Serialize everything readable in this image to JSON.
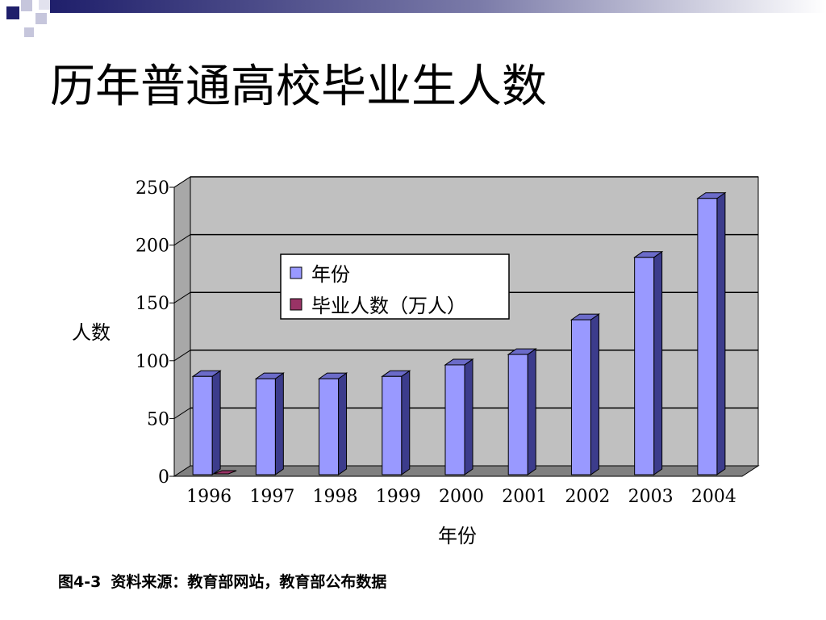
{
  "slide": {
    "title": "历年普通高校毕业生人数",
    "caption_label": "图4-3",
    "caption_text": "资料来源：教育部网站，教育部公布数据"
  },
  "colors": {
    "deco_dark": "#1f1f6b",
    "deco_mid": "#5a5a9a",
    "deco_light": "#c6c6dc",
    "plot_back": "#c0c0c0",
    "plot_floor": "#808080",
    "bar_front": "#9999ff",
    "bar_side": "#3c3c8c",
    "bar_top": "#6b6bc9",
    "series2": "#993366"
  },
  "chart_data": {
    "type": "bar",
    "title": "",
    "xlabel": "年份",
    "ylabel": "人数",
    "categories": [
      "1996",
      "1997",
      "1998",
      "1999",
      "2000",
      "2001",
      "2002",
      "2003",
      "2004"
    ],
    "series": [
      {
        "name": "年份",
        "values": [
          85,
          83,
          83,
          85,
          95,
          104,
          134,
          188,
          239
        ]
      },
      {
        "name": "毕业人数（万人）",
        "values": [
          0,
          0,
          0,
          0,
          0,
          0,
          0,
          0,
          0
        ]
      }
    ],
    "ylim": [
      0,
      250
    ],
    "yticks": [
      0,
      50,
      100,
      150,
      200,
      250
    ],
    "grid": true,
    "legend_position": "top-left"
  }
}
